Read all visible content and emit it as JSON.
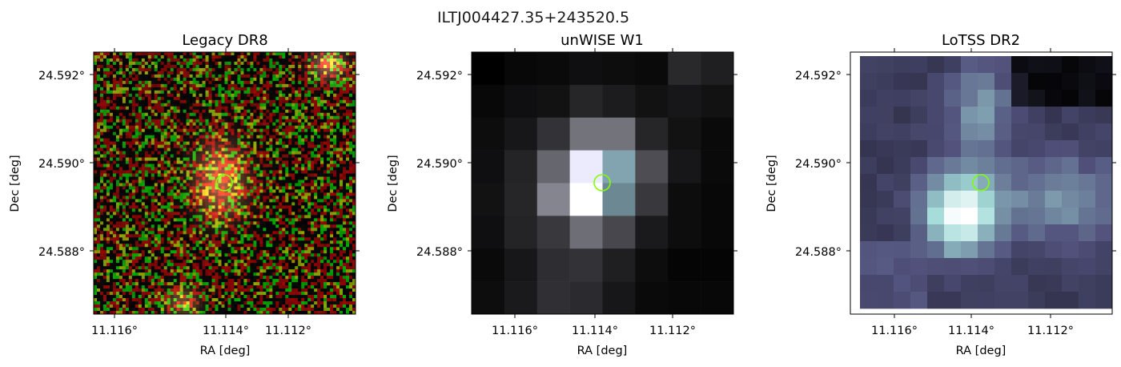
{
  "figure": {
    "title": "ILTJ004427.35+243520.5"
  },
  "panels": [
    {
      "title": "Legacy DR8",
      "survey_style": "optical-rgb-noise",
      "xlabel": "RA [deg]",
      "ylabel": "Dec [deg]",
      "xticks": [
        "11.116°",
        "11.114°",
        "11.112°"
      ],
      "yticks": [
        "24.592°",
        "24.590°",
        "24.588°"
      ]
    },
    {
      "title": "unWISE W1",
      "survey_style": "infrared-gray",
      "xlabel": "RA [deg]",
      "ylabel": "Dec [deg]",
      "xticks": [
        "11.116°",
        "11.114°",
        "11.112°"
      ],
      "yticks": [
        "24.592°",
        "24.590°",
        "24.588°"
      ]
    },
    {
      "title": "LoTSS DR2",
      "survey_style": "radio-bone",
      "xlabel": "RA [deg]",
      "ylabel": "Dec [deg]",
      "xticks": [
        "11.116°",
        "11.114°",
        "11.112°"
      ],
      "yticks": [
        "24.592°",
        "24.590°",
        "24.588°"
      ]
    }
  ],
  "marker": {
    "ra_deg": 11.1136,
    "dec_deg": 24.5895,
    "color": "#7fff00"
  }
}
